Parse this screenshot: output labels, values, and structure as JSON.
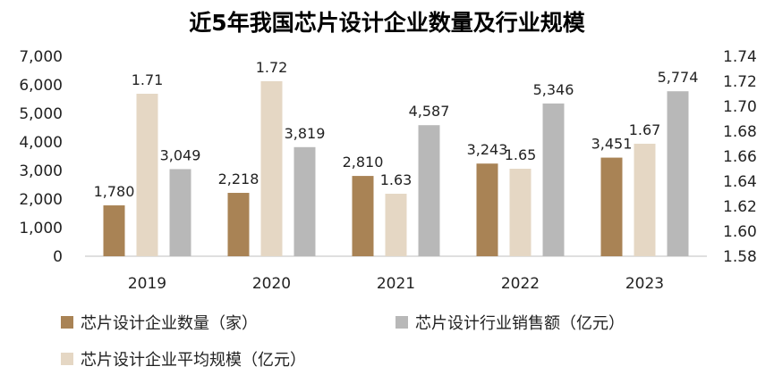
{
  "chart_data": {
    "type": "bar",
    "title": "近5年我国芯片设计企业数量及行业规模",
    "categories": [
      "2019",
      "2020",
      "2021",
      "2022",
      "2023"
    ],
    "series": [
      {
        "name": "芯片设计企业数量（家）",
        "axis": "left",
        "color": "#A98355",
        "values": [
          1780,
          2218,
          2810,
          3243,
          3451
        ],
        "labels": [
          "1,780",
          "2,218",
          "2,810",
          "3,243",
          "3,451"
        ]
      },
      {
        "name": "芯片设计企业平均规模（亿元）",
        "axis": "right",
        "color": "#E5D7C4",
        "values": [
          1.71,
          1.72,
          1.63,
          1.65,
          1.67
        ],
        "labels": [
          "1.71",
          "1.72",
          "1.63",
          "1.65",
          "1.67"
        ]
      },
      {
        "name": "芯片设计行业销售额（亿元）",
        "axis": "left",
        "color": "#B8B8B8",
        "values": [
          3049,
          3819,
          4587,
          5346,
          5774
        ],
        "labels": [
          "3,049",
          "3,819",
          "4,587",
          "5,346",
          "5,774"
        ]
      }
    ],
    "y_left": {
      "min": 0,
      "max": 7000,
      "ticks": [
        "0",
        "1,000",
        "2,000",
        "3,000",
        "4,000",
        "5,000",
        "6,000",
        "7,000"
      ],
      "tick_values": [
        0,
        1000,
        2000,
        3000,
        4000,
        5000,
        6000,
        7000
      ]
    },
    "y_right": {
      "min": 1.58,
      "max": 1.74,
      "ticks": [
        "1.58",
        "1.60",
        "1.62",
        "1.64",
        "1.66",
        "1.68",
        "1.70",
        "1.72",
        "1.74"
      ],
      "tick_values": [
        1.58,
        1.6,
        1.62,
        1.64,
        1.66,
        1.68,
        1.7,
        1.72,
        1.74
      ]
    },
    "legend": [
      "芯片设计企业数量（家）",
      "芯片设计行业销售额（亿元）",
      "芯片设计企业平均规模（亿元）"
    ],
    "legend_position": "bottom",
    "grid": false
  }
}
